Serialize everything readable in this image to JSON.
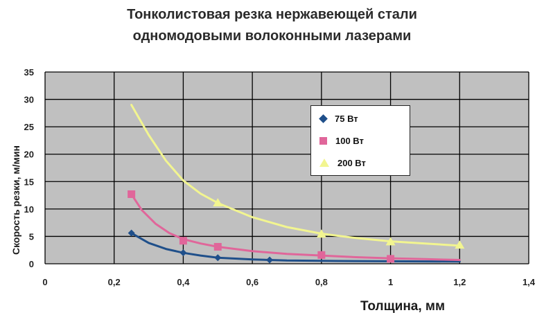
{
  "chart_data": {
    "type": "line",
    "title_lines": [
      "Тонколистовая резка нержавеющей стали",
      "одномодовыми волоконными лазерами"
    ],
    "xlabel": "Толщина, мм",
    "ylabel": "Скорость резки, м/мин",
    "xlim": [
      0,
      1.4
    ],
    "ylim": [
      0,
      35
    ],
    "x_ticks": [
      "0",
      "0,2",
      "0,4",
      "0,6",
      "0,8",
      "1",
      "1,2",
      "1,4"
    ],
    "y_ticks": [
      "0",
      "5",
      "10",
      "15",
      "20",
      "25",
      "30",
      "35"
    ],
    "grid": true,
    "legend_position": "right",
    "series": [
      {
        "name": "75 Вт",
        "marker": "diamond",
        "color": "#1f4f8a",
        "points": [
          [
            0.25,
            5.6
          ],
          [
            0.4,
            2.0
          ],
          [
            0.5,
            1.1
          ],
          [
            0.65,
            0.7
          ]
        ],
        "curve": [
          [
            0.25,
            5.6
          ],
          [
            0.3,
            3.8
          ],
          [
            0.35,
            2.7
          ],
          [
            0.4,
            2.0
          ],
          [
            0.45,
            1.5
          ],
          [
            0.5,
            1.1
          ],
          [
            0.6,
            0.8
          ],
          [
            0.7,
            0.6
          ],
          [
            0.85,
            0.5
          ],
          [
            1.0,
            0.45
          ],
          [
            1.2,
            0.4
          ]
        ]
      },
      {
        "name": "100 Вт",
        "marker": "square",
        "color": "#e0669a",
        "points": [
          [
            0.25,
            12.7
          ],
          [
            0.4,
            4.2
          ],
          [
            0.5,
            3.1
          ],
          [
            0.8,
            1.6
          ],
          [
            1.0,
            0.9
          ]
        ],
        "curve": [
          [
            0.25,
            12.7
          ],
          [
            0.28,
            9.8
          ],
          [
            0.32,
            7.3
          ],
          [
            0.36,
            5.6
          ],
          [
            0.4,
            4.5
          ],
          [
            0.45,
            3.7
          ],
          [
            0.5,
            3.1
          ],
          [
            0.6,
            2.3
          ],
          [
            0.7,
            1.8
          ],
          [
            0.8,
            1.5
          ],
          [
            0.9,
            1.2
          ],
          [
            1.0,
            1.0
          ],
          [
            1.1,
            0.85
          ],
          [
            1.2,
            0.7
          ]
        ]
      },
      {
        "name": "200 Вт",
        "marker": "triangle",
        "color": "#f2f590",
        "points": [
          [
            0.5,
            11.1
          ],
          [
            0.8,
            5.4
          ],
          [
            1.0,
            4.0
          ],
          [
            1.2,
            3.4
          ]
        ],
        "curve": [
          [
            0.25,
            29
          ],
          [
            0.3,
            23.5
          ],
          [
            0.35,
            18.8
          ],
          [
            0.4,
            15.2
          ],
          [
            0.45,
            12.8
          ],
          [
            0.5,
            11.1
          ],
          [
            0.6,
            8.5
          ],
          [
            0.7,
            6.7
          ],
          [
            0.8,
            5.5
          ],
          [
            0.9,
            4.7
          ],
          [
            1.0,
            4.1
          ],
          [
            1.1,
            3.7
          ],
          [
            1.2,
            3.3
          ]
        ]
      }
    ]
  },
  "colors": {
    "plot_background": "#c0c0c0",
    "grid": "#000000"
  }
}
